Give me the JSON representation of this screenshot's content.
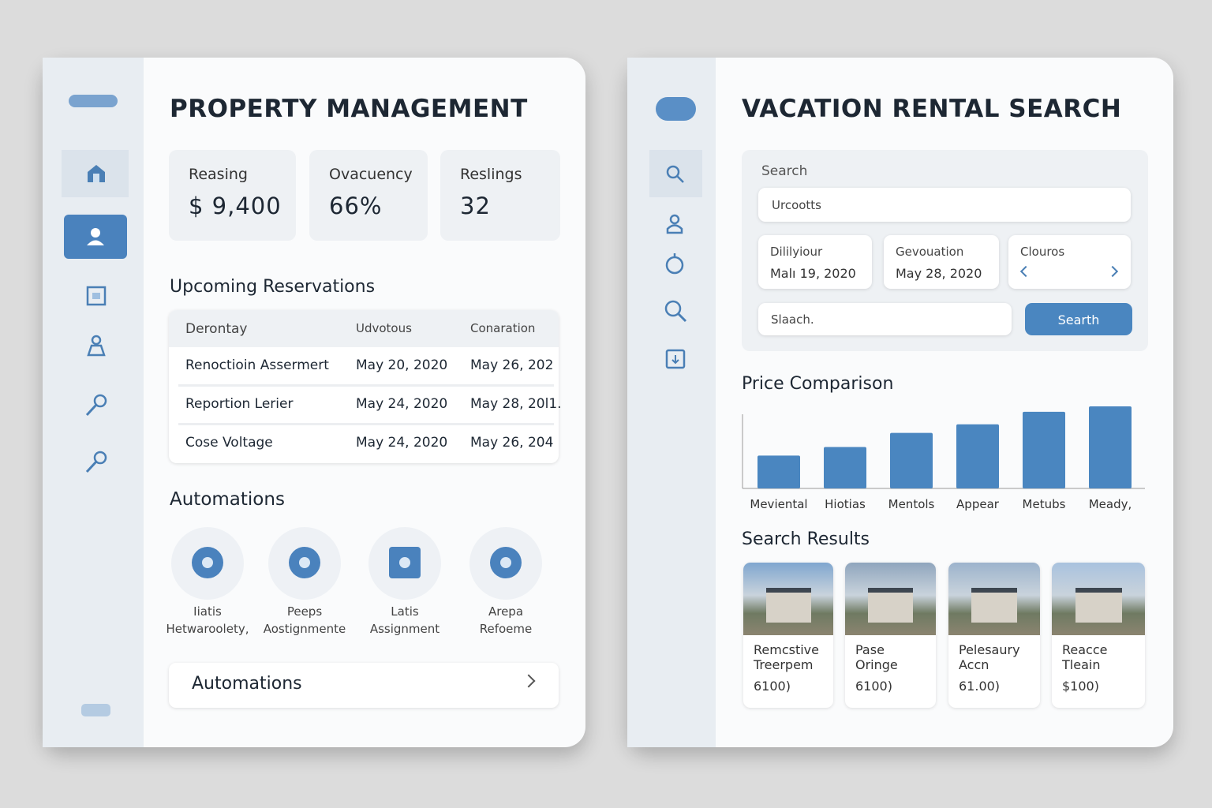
{
  "property": {
    "title": "PROPERTY MANAGEMENT",
    "stats": [
      {
        "label": "Reasing",
        "value": "$ 9,400"
      },
      {
        "label": "Ovacuency",
        "value": "66%"
      },
      {
        "label": "Reslings",
        "value": "32"
      }
    ],
    "reservations_title": "Upcoming Reservations",
    "table": {
      "header": [
        "Derontay",
        "Udvotous",
        "Conaration"
      ],
      "rows": [
        [
          "Renoctioin Assermert",
          "May 20, 2020",
          "May 26, 202"
        ],
        [
          "Reportion Lerier",
          "May 24, 2020",
          "May 28, 20l1."
        ],
        [
          "Cose Voltage",
          "May 24, 2020",
          "May 26, 204"
        ]
      ]
    },
    "automations_title": "Automations",
    "automations": [
      [
        "Iiatis",
        "Hetwaroolety,"
      ],
      [
        "Peeps",
        "Aostignmente"
      ],
      [
        "Latis",
        "Assignment"
      ],
      [
        "Arepa",
        "Refoeme"
      ]
    ],
    "automations_button": "Automations"
  },
  "rental": {
    "title": "VACATION RENTAL SEARCH",
    "search_label": "Search",
    "search_input": "Urcootts",
    "fields": [
      {
        "label": "Dililyiour",
        "value": "Malı 19, 2020"
      },
      {
        "label": "Gevouation",
        "value": "May 28, 2020"
      },
      {
        "label": "Clouros"
      }
    ],
    "second_input": "Slaach.",
    "search_button": "Searth",
    "chart_title": "Price Comparison",
    "results_title": "Search Results",
    "results": [
      {
        "title": [
          "Remcstive",
          "Treerpem"
        ],
        "price": "6100)"
      },
      {
        "title": [
          "Pase",
          "Oringe"
        ],
        "price": "6100)"
      },
      {
        "title": [
          "Pelesaury",
          "Accn"
        ],
        "price": "61.00)"
      },
      {
        "title": [
          "Reacce",
          "Tleain"
        ],
        "price": "$100)"
      }
    ]
  },
  "chart_data": {
    "type": "bar",
    "categories": [
      "Meviental",
      "Hiotias",
      "Mentols",
      "Appear",
      "Metubs",
      "Meady,"
    ],
    "values": [
      42,
      53,
      71,
      82,
      98,
      105
    ],
    "ylim": [
      0,
      110
    ],
    "color": "#4a86c0"
  }
}
